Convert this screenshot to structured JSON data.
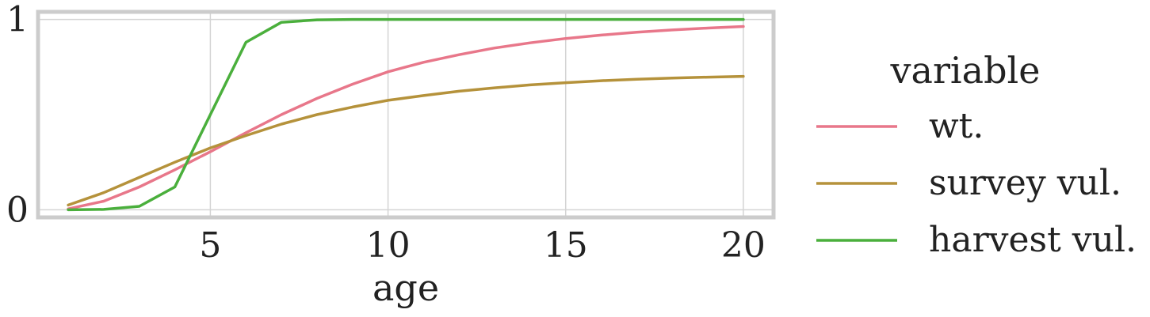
{
  "chart_data": {
    "type": "line",
    "xlabel": "age",
    "ylabel": "",
    "xlim": [
      0.15,
      20.85
    ],
    "ylim": [
      -0.04,
      1.04
    ],
    "xticks": [
      5,
      10,
      15,
      20
    ],
    "yticks": [
      0,
      1
    ],
    "xtick_labels": [
      "5",
      "10",
      "15",
      "20"
    ],
    "ytick_labels": [
      "0",
      "1"
    ],
    "grid": true,
    "legend": {
      "title": "variable",
      "placement": "right"
    },
    "x": [
      1,
      2,
      3,
      4,
      5,
      6,
      7,
      8,
      9,
      10,
      11,
      12,
      13,
      14,
      15,
      16,
      17,
      18,
      19,
      20
    ],
    "series": [
      {
        "name": "wt.",
        "color": "#e8778a",
        "values": [
          0.005,
          0.045,
          0.12,
          0.21,
          0.305,
          0.405,
          0.5,
          0.585,
          0.66,
          0.725,
          0.775,
          0.815,
          0.85,
          0.877,
          0.9,
          0.918,
          0.933,
          0.945,
          0.955,
          0.963
        ]
      },
      {
        "name": "survey vul.",
        "color": "#b5923b",
        "values": [
          0.025,
          0.09,
          0.17,
          0.25,
          0.325,
          0.39,
          0.45,
          0.5,
          0.54,
          0.575,
          0.6,
          0.623,
          0.641,
          0.656,
          0.668,
          0.678,
          0.686,
          0.692,
          0.697,
          0.701
        ]
      },
      {
        "name": "harvest vul.",
        "color": "#4aaf3c",
        "values": [
          0.0,
          0.002,
          0.018,
          0.12,
          0.5,
          0.88,
          0.985,
          0.998,
          1.0,
          1.0,
          1.0,
          1.0,
          1.0,
          1.0,
          1.0,
          1.0,
          1.0,
          1.0,
          1.0,
          1.0
        ]
      }
    ]
  }
}
